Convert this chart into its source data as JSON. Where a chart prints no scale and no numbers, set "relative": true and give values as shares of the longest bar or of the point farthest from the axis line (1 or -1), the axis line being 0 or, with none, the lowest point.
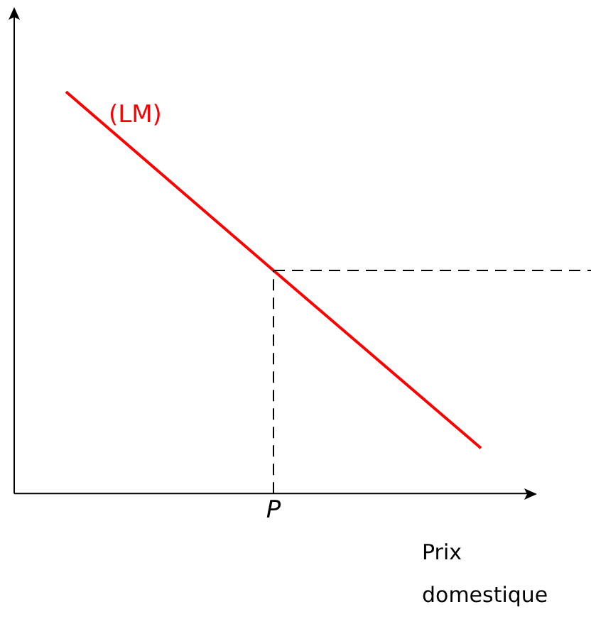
{
  "chart_data": {
    "type": "line",
    "relative": true,
    "xlabel": "Prix domestique $P$",
    "categories": [
      null,
      null,
      null
    ],
    "series": [
      {
        "name": "(LM)",
        "color": "#ff0000",
        "values": [
          1,
          0.555,
          0.113
        ]
      }
    ],
    "ref_lines": [
      {
        "axis": "y",
        "value": 0.555,
        "line_style": "dashed",
        "color": "#000000"
      }
    ],
    "annotations": [
      "P"
    ],
    "grid": false,
    "legend": false,
    "marker": "none",
    "line_style": "solid"
  }
}
